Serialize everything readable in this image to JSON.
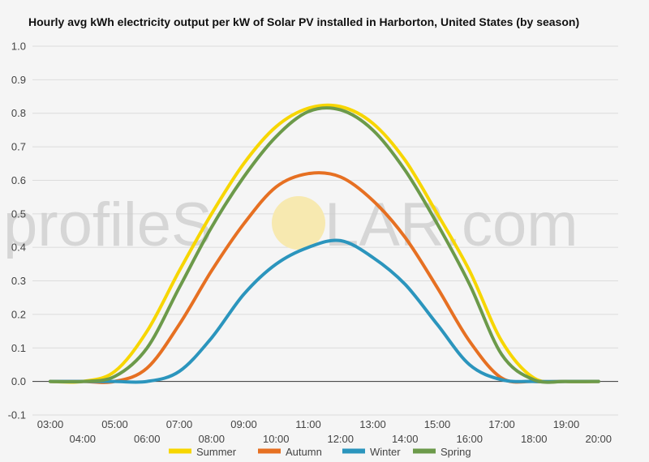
{
  "chart_data": {
    "type": "line",
    "title": "Hourly avg kWh electricity output per kW of Solar PV installed in Harborton, United States (by season)",
    "xlabel": "",
    "ylabel": "",
    "x": [
      "03:00",
      "04:00",
      "05:00",
      "06:00",
      "07:00",
      "08:00",
      "09:00",
      "10:00",
      "11:00",
      "12:00",
      "13:00",
      "14:00",
      "15:00",
      "16:00",
      "17:00",
      "18:00",
      "19:00",
      "20:00"
    ],
    "ylim": [
      -0.1,
      1.0
    ],
    "yticks": [
      "1.0",
      "0.9",
      "0.8",
      "0.7",
      "0.6",
      "0.5",
      "0.4",
      "0.3",
      "0.2",
      "0.1",
      "0.0",
      "-0.1"
    ],
    "grid": true,
    "legend_position": "bottom",
    "series": [
      {
        "name": "Summer",
        "color": "#f7d600",
        "values": [
          0,
          0,
          0.03,
          0.15,
          0.33,
          0.5,
          0.65,
          0.76,
          0.815,
          0.82,
          0.77,
          0.66,
          0.5,
          0.33,
          0.12,
          0.01,
          0,
          0
        ]
      },
      {
        "name": "Autumn",
        "color": "#e67022",
        "values": [
          0,
          0,
          0,
          0.04,
          0.17,
          0.33,
          0.47,
          0.58,
          0.62,
          0.61,
          0.54,
          0.43,
          0.28,
          0.12,
          0.01,
          0,
          0,
          0
        ]
      },
      {
        "name": "Winter",
        "color": "#2b95bd",
        "values": [
          0,
          0,
          0,
          0,
          0.03,
          0.13,
          0.26,
          0.35,
          0.4,
          0.42,
          0.37,
          0.29,
          0.17,
          0.05,
          0.005,
          0,
          0,
          0
        ]
      },
      {
        "name": "Spring",
        "color": "#6c9a4a",
        "values": [
          0,
          0,
          0.015,
          0.1,
          0.28,
          0.46,
          0.61,
          0.73,
          0.805,
          0.81,
          0.75,
          0.63,
          0.47,
          0.29,
          0.08,
          0.005,
          0,
          0
        ]
      }
    ]
  },
  "watermark": {
    "text_left": "profileS",
    "text_right": "LAR.com",
    "sun_color": "#f7e9b0"
  }
}
